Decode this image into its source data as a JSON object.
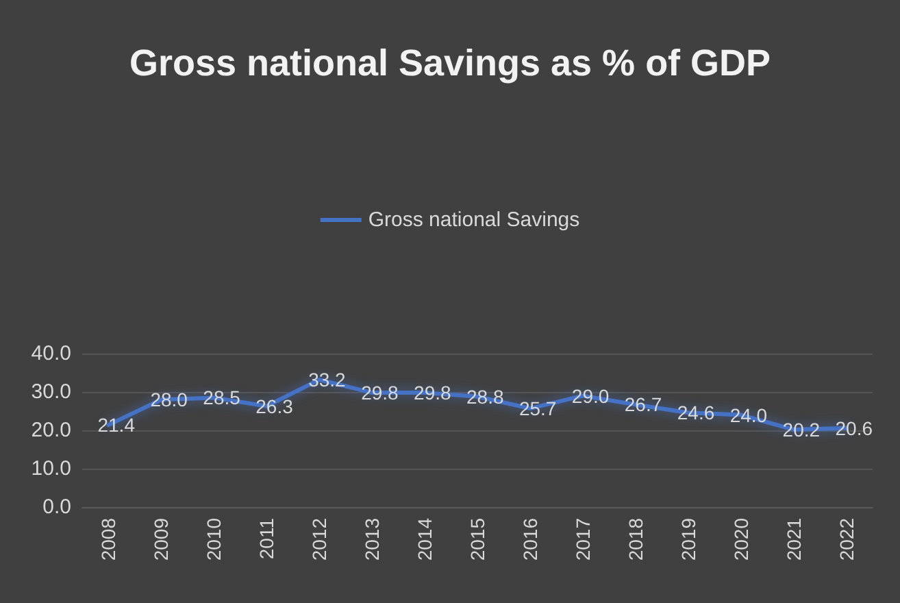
{
  "chart_data": {
    "type": "line",
    "title": "Gross national Savings as % of GDP",
    "categories": [
      "2008",
      "2009",
      "2010",
      "2011",
      "2012",
      "2013",
      "2014",
      "2015",
      "2016",
      "2017",
      "2018",
      "2019",
      "2020",
      "2021",
      "2022"
    ],
    "series": [
      {
        "name": "Gross national Savings",
        "color": "#4472c4",
        "values": [
          21.4,
          28.0,
          28.5,
          26.3,
          33.2,
          29.8,
          29.8,
          28.8,
          25.7,
          29.0,
          26.7,
          24.6,
          24.0,
          20.2,
          20.6
        ],
        "value_labels": [
          "21.4",
          "28.0",
          "28.5",
          "26.3",
          "33.2",
          "29.8",
          "29.8",
          "28.8",
          "25.7",
          "29.0",
          "26.7",
          "24.6",
          "24.0",
          "20.2",
          "20.6"
        ]
      }
    ],
    "ylim": [
      0,
      40
    ],
    "yticks": [
      {
        "value": 0,
        "label": "0.0"
      },
      {
        "value": 10,
        "label": "10.0"
      },
      {
        "value": 20,
        "label": "20.0"
      },
      {
        "value": 30,
        "label": "30.0"
      },
      {
        "value": 40,
        "label": "40.0"
      }
    ],
    "grid": "y",
    "legend": "top",
    "marker": "none",
    "line_style": "solid"
  }
}
